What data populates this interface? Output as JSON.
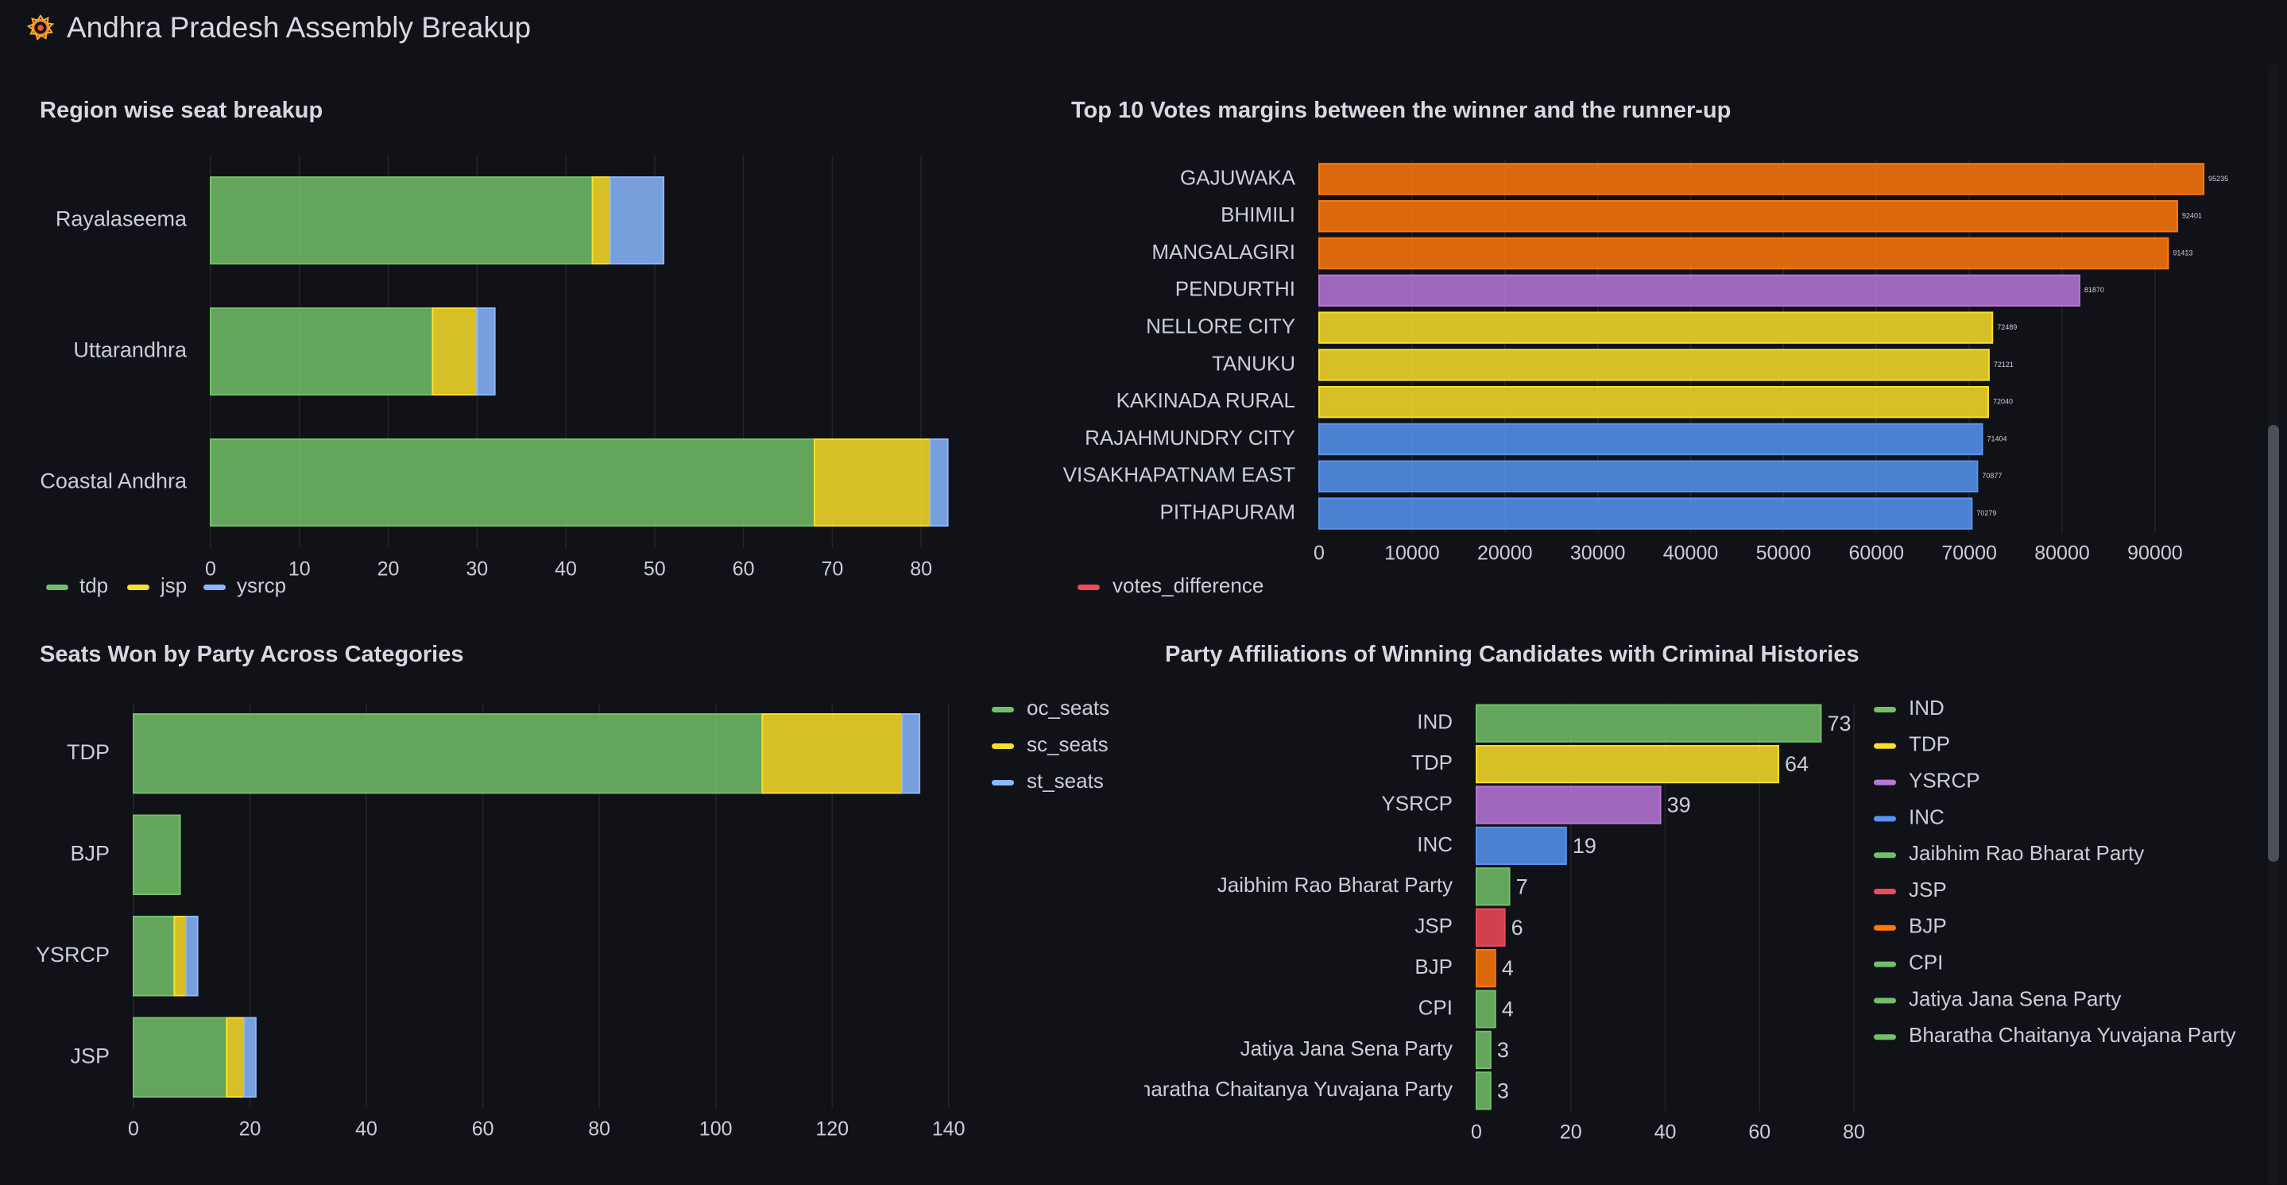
{
  "dashboard": {
    "title": "Andhra Pradesh Assembly Breakup"
  },
  "colors": {
    "green": "#73bf69",
    "yellow": "#fade2a",
    "blue": "#8ab8ff",
    "orange": "#ff780a",
    "purple": "#b877d9",
    "dblue": "#5794f2",
    "red": "#f2495c",
    "grid": "#23252b",
    "text": "#ccccdc",
    "bg": "#111217"
  },
  "panels": {
    "region": {
      "title": "Region wise seat breakup"
    },
    "margins": {
      "title": "Top 10 Votes margins between the winner and the runner-up"
    },
    "categories": {
      "title": "Seats Won by Party Across Categories"
    },
    "criminal": {
      "title": "Party Affiliations of Winning Candidates with Criminal Histories"
    }
  },
  "chart_data": [
    {
      "type": "bar",
      "stacked": true,
      "orientation": "horizontal",
      "title": "Region wise seat breakup",
      "categories": [
        "Rayalaseema",
        "Uttarandhra",
        "Coastal Andhra"
      ],
      "series": [
        {
          "name": "tdp",
          "color": "green",
          "values": [
            43,
            25,
            68
          ]
        },
        {
          "name": "jsp",
          "color": "yellow",
          "values": [
            2,
            5,
            13
          ]
        },
        {
          "name": "ysrcp",
          "color": "blue",
          "values": [
            6,
            2,
            2
          ]
        }
      ],
      "xlim": [
        0,
        85
      ],
      "xticks": [
        0,
        10,
        20,
        30,
        40,
        50,
        60,
        70,
        80
      ],
      "legend": "bottom-left"
    },
    {
      "type": "bar",
      "orientation": "horizontal",
      "title": "Top 10 Votes margins between the winner and the runner-up",
      "categories": [
        "GAJUWAKA",
        "BHIMILI",
        "MANGALAGIRI",
        "PENDURTHI",
        "NELLORE CITY",
        "TANUKU",
        "KAKINADA RURAL",
        "RAJAHMUNDRY CITY",
        "VISAKHAPATNAM EAST",
        "PITHAPURAM"
      ],
      "series": [
        {
          "name": "votes_difference",
          "color": "red",
          "values": [
            95235,
            92401,
            91413,
            81870,
            72489,
            72121,
            72040,
            71404,
            70877,
            70279
          ]
        }
      ],
      "bar_colors": [
        "orange",
        "orange",
        "orange",
        "purple",
        "yellow",
        "yellow",
        "yellow",
        "dblue",
        "dblue",
        "dblue"
      ],
      "data_labels": [
        "95235",
        "92401",
        "91413",
        "81870",
        "72489",
        "72121",
        "72040",
        "71404",
        "70877",
        "70279"
      ],
      "xlim": [
        0,
        96000
      ],
      "xticks": [
        0,
        10000,
        20000,
        30000,
        40000,
        50000,
        60000,
        70000,
        80000,
        90000
      ],
      "legend": "bottom-left"
    },
    {
      "type": "bar",
      "stacked": true,
      "orientation": "horizontal",
      "title": "Seats Won by Party Across Categories",
      "categories": [
        "TDP",
        "BJP",
        "YSRCP",
        "JSP"
      ],
      "series": [
        {
          "name": "oc_seats",
          "color": "green",
          "values": [
            108,
            8,
            7,
            16
          ]
        },
        {
          "name": "sc_seats",
          "color": "yellow",
          "values": [
            24,
            0,
            2,
            3
          ]
        },
        {
          "name": "st_seats",
          "color": "blue",
          "values": [
            3,
            0,
            2,
            2
          ]
        }
      ],
      "xlim": [
        0,
        150
      ],
      "xticks": [
        0,
        20,
        40,
        60,
        80,
        100,
        120,
        140
      ],
      "legend": "right"
    },
    {
      "type": "bar",
      "orientation": "horizontal",
      "title": "Party Affiliations of Winning Candidates with Criminal Histories",
      "categories": [
        "IND",
        "TDP",
        "YSRCP",
        "INC",
        "Jaibhim Rao Bharat Party",
        "JSP",
        "BJP",
        "CPI",
        "Jatiya Jana Sena Party",
        "Bharatha Chaitanya Yuvajana Party"
      ],
      "values": [
        73,
        64,
        39,
        19,
        7,
        6,
        4,
        4,
        3,
        3
      ],
      "bar_colors": [
        "green",
        "yellow",
        "purple",
        "dblue",
        "green",
        "red",
        "orange",
        "green",
        "green",
        "green"
      ],
      "xlim": [
        0,
        80
      ],
      "xticks": [
        0,
        20,
        40,
        60,
        80
      ],
      "legend": "right"
    }
  ]
}
